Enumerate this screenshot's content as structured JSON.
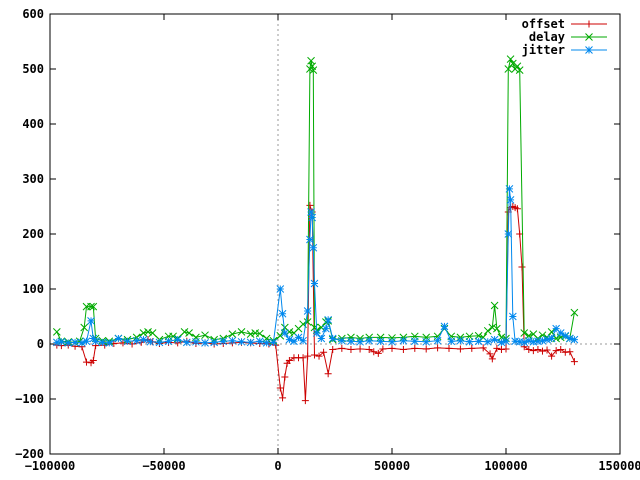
{
  "chart_data": {
    "type": "line",
    "title": "",
    "xlabel": "",
    "ylabel": "",
    "xlim": [
      -100000,
      150000
    ],
    "ylim": [
      -200,
      600
    ],
    "x_ticks": [
      -100000,
      -50000,
      0,
      50000,
      100000,
      150000
    ],
    "x_tick_labels": [
      "−100000",
      "−50000",
      "0",
      "50000",
      "100000",
      "150000"
    ],
    "y_ticks": [
      -200,
      -100,
      0,
      100,
      200,
      300,
      400,
      500,
      600
    ],
    "y_tick_labels": [
      "−200",
      "−100",
      "0",
      "100",
      "200",
      "300",
      "400",
      "500",
      "600"
    ],
    "zero_lines": true,
    "legend_position": "top-right",
    "series": [
      {
        "name": "offset",
        "color": "#cc0000",
        "marker": "plus",
        "points": [
          [
            -97000,
            -2
          ],
          [
            -95000,
            -3
          ],
          [
            -92000,
            -2
          ],
          [
            -89000,
            -4
          ],
          [
            -86000,
            -5
          ],
          [
            -84000,
            -33
          ],
          [
            -82000,
            -34
          ],
          [
            -81000,
            -30
          ],
          [
            -80000,
            -3
          ],
          [
            -76000,
            -2
          ],
          [
            -72000,
            1
          ],
          [
            -68000,
            2
          ],
          [
            -64000,
            0
          ],
          [
            -60000,
            3
          ],
          [
            -57000,
            8
          ],
          [
            -55000,
            4
          ],
          [
            -52000,
            1
          ],
          [
            -48000,
            3
          ],
          [
            -44000,
            2
          ],
          [
            -40000,
            5
          ],
          [
            -36000,
            1
          ],
          [
            -32000,
            2
          ],
          [
            -28000,
            0
          ],
          [
            -24000,
            1
          ],
          [
            -20000,
            2
          ],
          [
            -16000,
            3
          ],
          [
            -12000,
            2
          ],
          [
            -8000,
            1
          ],
          [
            -4000,
            0
          ],
          [
            -1000,
            -2
          ],
          [
            1000,
            -80
          ],
          [
            2000,
            -98
          ],
          [
            3000,
            -60
          ],
          [
            4000,
            -35
          ],
          [
            5000,
            -30
          ],
          [
            7000,
            -25
          ],
          [
            9000,
            -25
          ],
          [
            11000,
            -25
          ],
          [
            12000,
            -103
          ],
          [
            13000,
            -22
          ],
          [
            14000,
            252
          ],
          [
            15000,
            240
          ],
          [
            16000,
            -20
          ],
          [
            18000,
            -22
          ],
          [
            20000,
            -15
          ],
          [
            22000,
            -54
          ],
          [
            24000,
            -10
          ],
          [
            28000,
            -8
          ],
          [
            32000,
            -10
          ],
          [
            36000,
            -9
          ],
          [
            40000,
            -10
          ],
          [
            42000,
            -14
          ],
          [
            44000,
            -17
          ],
          [
            46000,
            -9
          ],
          [
            50000,
            -8
          ],
          [
            55000,
            -10
          ],
          [
            60000,
            -8
          ],
          [
            65000,
            -9
          ],
          [
            70000,
            -7
          ],
          [
            75000,
            -8
          ],
          [
            80000,
            -9
          ],
          [
            85000,
            -8
          ],
          [
            90000,
            -7
          ],
          [
            93000,
            -18
          ],
          [
            94000,
            -27
          ],
          [
            96000,
            -8
          ],
          [
            98000,
            -10
          ],
          [
            100000,
            -9
          ],
          [
            101000,
            240
          ],
          [
            102000,
            248
          ],
          [
            103000,
            250
          ],
          [
            104000,
            248
          ],
          [
            105000,
            246
          ],
          [
            106000,
            200
          ],
          [
            107000,
            140
          ],
          [
            108000,
            -5
          ],
          [
            110000,
            -10
          ],
          [
            112000,
            -12
          ],
          [
            114000,
            -10
          ],
          [
            116000,
            -13
          ],
          [
            118000,
            -11
          ],
          [
            120000,
            -22
          ],
          [
            122000,
            -12
          ],
          [
            124000,
            -10
          ],
          [
            126000,
            -15
          ],
          [
            128000,
            -14
          ],
          [
            130000,
            -32
          ]
        ]
      },
      {
        "name": "delay",
        "color": "#00aa00",
        "marker": "cross",
        "points": [
          [
            -97000,
            22
          ],
          [
            -95000,
            5
          ],
          [
            -92000,
            4
          ],
          [
            -89000,
            3
          ],
          [
            -87000,
            5
          ],
          [
            -85000,
            30
          ],
          [
            -84000,
            68
          ],
          [
            -82000,
            68
          ],
          [
            -81000,
            68
          ],
          [
            -80000,
            10
          ],
          [
            -77000,
            6
          ],
          [
            -74000,
            5
          ],
          [
            -70000,
            10
          ],
          [
            -66000,
            8
          ],
          [
            -62000,
            12
          ],
          [
            -59000,
            20
          ],
          [
            -57000,
            22
          ],
          [
            -55000,
            20
          ],
          [
            -52000,
            8
          ],
          [
            -48000,
            14
          ],
          [
            -46000,
            14
          ],
          [
            -44000,
            10
          ],
          [
            -41000,
            22
          ],
          [
            -39000,
            20
          ],
          [
            -36000,
            12
          ],
          [
            -32000,
            16
          ],
          [
            -28000,
            8
          ],
          [
            -24000,
            10
          ],
          [
            -20000,
            18
          ],
          [
            -16000,
            22
          ],
          [
            -12000,
            18
          ],
          [
            -10000,
            20
          ],
          [
            -8000,
            19
          ],
          [
            -5000,
            10
          ],
          [
            -2000,
            6
          ],
          [
            1000,
            15
          ],
          [
            3000,
            30
          ],
          [
            5000,
            22
          ],
          [
            7000,
            20
          ],
          [
            9000,
            28
          ],
          [
            11000,
            36
          ],
          [
            13000,
            40
          ],
          [
            14000,
            500
          ],
          [
            14500,
            515
          ],
          [
            15000,
            505
          ],
          [
            15500,
            498
          ],
          [
            16000,
            30
          ],
          [
            17000,
            25
          ],
          [
            19000,
            30
          ],
          [
            21000,
            40
          ],
          [
            22000,
            42
          ],
          [
            24000,
            8
          ],
          [
            28000,
            10
          ],
          [
            32000,
            12
          ],
          [
            36000,
            10
          ],
          [
            40000,
            12
          ],
          [
            45000,
            12
          ],
          [
            50000,
            11
          ],
          [
            55000,
            12
          ],
          [
            60000,
            14
          ],
          [
            65000,
            12
          ],
          [
            70000,
            14
          ],
          [
            73000,
            28
          ],
          [
            76000,
            14
          ],
          [
            80000,
            12
          ],
          [
            84000,
            14
          ],
          [
            88000,
            15
          ],
          [
            90000,
            12
          ],
          [
            92000,
            24
          ],
          [
            94000,
            30
          ],
          [
            95000,
            70
          ],
          [
            96000,
            28
          ],
          [
            98000,
            12
          ],
          [
            100000,
            10
          ],
          [
            101000,
            500
          ],
          [
            102000,
            518
          ],
          [
            103000,
            510
          ],
          [
            104000,
            500
          ],
          [
            105000,
            505
          ],
          [
            106000,
            498
          ],
          [
            108000,
            20
          ],
          [
            110000,
            15
          ],
          [
            112000,
            18
          ],
          [
            114000,
            10
          ],
          [
            116000,
            16
          ],
          [
            118000,
            12
          ],
          [
            120000,
            22
          ],
          [
            122000,
            10
          ],
          [
            124000,
            12
          ],
          [
            126000,
            14
          ],
          [
            128000,
            10
          ],
          [
            130000,
            57
          ]
        ]
      },
      {
        "name": "jitter",
        "color": "#0088ee",
        "marker": "star",
        "points": [
          [
            -97000,
            3
          ],
          [
            -95000,
            4
          ],
          [
            -92000,
            2
          ],
          [
            -89000,
            3
          ],
          [
            -86000,
            2
          ],
          [
            -84000,
            5
          ],
          [
            -82000,
            42
          ],
          [
            -81000,
            10
          ],
          [
            -80000,
            5
          ],
          [
            -77000,
            3
          ],
          [
            -74000,
            2
          ],
          [
            -70000,
            10
          ],
          [
            -66000,
            5
          ],
          [
            -62000,
            6
          ],
          [
            -59000,
            8
          ],
          [
            -56000,
            4
          ],
          [
            -52000,
            3
          ],
          [
            -48000,
            5
          ],
          [
            -44000,
            8
          ],
          [
            -40000,
            3
          ],
          [
            -36000,
            4
          ],
          [
            -32000,
            2
          ],
          [
            -28000,
            3
          ],
          [
            -24000,
            5
          ],
          [
            -20000,
            6
          ],
          [
            -16000,
            4
          ],
          [
            -12000,
            3
          ],
          [
            -8000,
            5
          ],
          [
            -5000,
            2
          ],
          [
            -2000,
            3
          ],
          [
            1000,
            100
          ],
          [
            2000,
            55
          ],
          [
            3000,
            20
          ],
          [
            5000,
            8
          ],
          [
            7000,
            5
          ],
          [
            9000,
            12
          ],
          [
            11000,
            6
          ],
          [
            13000,
            60
          ],
          [
            14000,
            190
          ],
          [
            14500,
            240
          ],
          [
            15000,
            230
          ],
          [
            15500,
            175
          ],
          [
            16000,
            110
          ],
          [
            17000,
            20
          ],
          [
            19000,
            10
          ],
          [
            21000,
            28
          ],
          [
            22000,
            44
          ],
          [
            24000,
            10
          ],
          [
            28000,
            6
          ],
          [
            32000,
            5
          ],
          [
            36000,
            4
          ],
          [
            40000,
            6
          ],
          [
            45000,
            5
          ],
          [
            50000,
            4
          ],
          [
            55000,
            6
          ],
          [
            60000,
            5
          ],
          [
            65000,
            4
          ],
          [
            70000,
            6
          ],
          [
            73000,
            32
          ],
          [
            76000,
            5
          ],
          [
            80000,
            6
          ],
          [
            84000,
            4
          ],
          [
            88000,
            5
          ],
          [
            92000,
            4
          ],
          [
            95000,
            8
          ],
          [
            98000,
            3
          ],
          [
            100000,
            5
          ],
          [
            101000,
            200
          ],
          [
            101500,
            282
          ],
          [
            102000,
            262
          ],
          [
            103000,
            50
          ],
          [
            104000,
            5
          ],
          [
            106000,
            4
          ],
          [
            108000,
            3
          ],
          [
            110000,
            6
          ],
          [
            112000,
            4
          ],
          [
            114000,
            5
          ],
          [
            116000,
            6
          ],
          [
            118000,
            8
          ],
          [
            120000,
            10
          ],
          [
            122000,
            28
          ],
          [
            124000,
            20
          ],
          [
            126000,
            15
          ],
          [
            128000,
            10
          ],
          [
            130000,
            8
          ]
        ]
      }
    ]
  }
}
